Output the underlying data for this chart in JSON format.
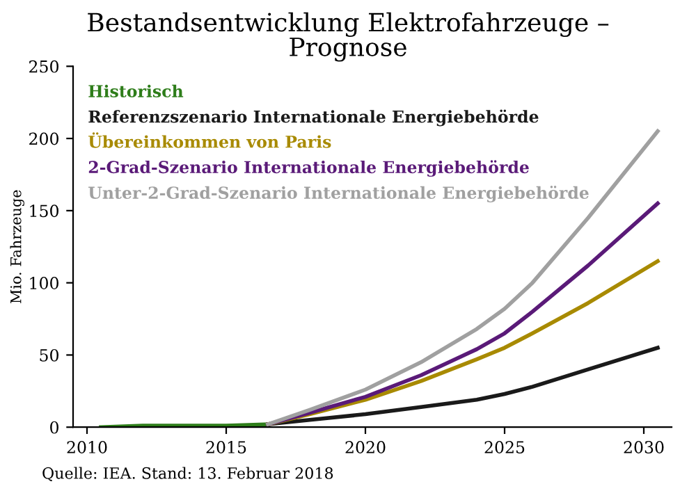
{
  "chart_data": {
    "type": "line",
    "title": "Bestandsentwicklung Elektrofahrzeuge –\nPrognose",
    "ylabel": "Mio. Fahrzeuge",
    "xlim": [
      2009.5,
      2031
    ],
    "xticks": [
      2010,
      2015,
      2020,
      2025,
      2030
    ],
    "ylim": [
      0,
      250
    ],
    "yticks": [
      0,
      50,
      100,
      150,
      200,
      250
    ],
    "grid": false,
    "legend": "top left",
    "marker": "none",
    "line_style": "solid",
    "series": [
      {
        "name": "Historisch",
        "color": "#2e7d1a",
        "x": [
          2010.5,
          2012,
          2014,
          2015,
          2016.5
        ],
        "values": [
          0,
          1,
          1,
          1,
          2
        ]
      },
      {
        "name": "Referenzszenario Internationale Energiebehörde",
        "color": "#1a1a1a",
        "x": [
          2016.5,
          2018,
          2020,
          2022,
          2024,
          2025,
          2026,
          2028,
          2030.5
        ],
        "values": [
          2,
          5,
          9,
          14,
          19,
          23,
          28,
          40,
          55
        ]
      },
      {
        "name": "Übereinkommen von Paris",
        "color": "#a88a00",
        "x": [
          2016.5,
          2018,
          2020,
          2022,
          2024,
          2025,
          2026,
          2028,
          2030.5
        ],
        "values": [
          2,
          9,
          19,
          32,
          47,
          55,
          65,
          86,
          115
        ]
      },
      {
        "name": "2-Grad-Szenario Internationale Energiebehörde",
        "color": "#5a1a78",
        "x": [
          2016.5,
          2018,
          2020,
          2022,
          2024,
          2025,
          2026,
          2028,
          2030.5
        ],
        "values": [
          2,
          10,
          21,
          36,
          54,
          65,
          80,
          112,
          155
        ]
      },
      {
        "name": "Unter-2-Grad-Szenario Internationale Energiebehörde",
        "color": "#a0a0a0",
        "x": [
          2016.5,
          2018,
          2020,
          2022,
          2024,
          2025,
          2026,
          2028,
          2030.5
        ],
        "values": [
          2,
          12,
          26,
          45,
          68,
          82,
          100,
          145,
          205
        ]
      }
    ],
    "annotations": [
      "Quelle: IEA. Stand: 13. Februar 2018"
    ]
  }
}
